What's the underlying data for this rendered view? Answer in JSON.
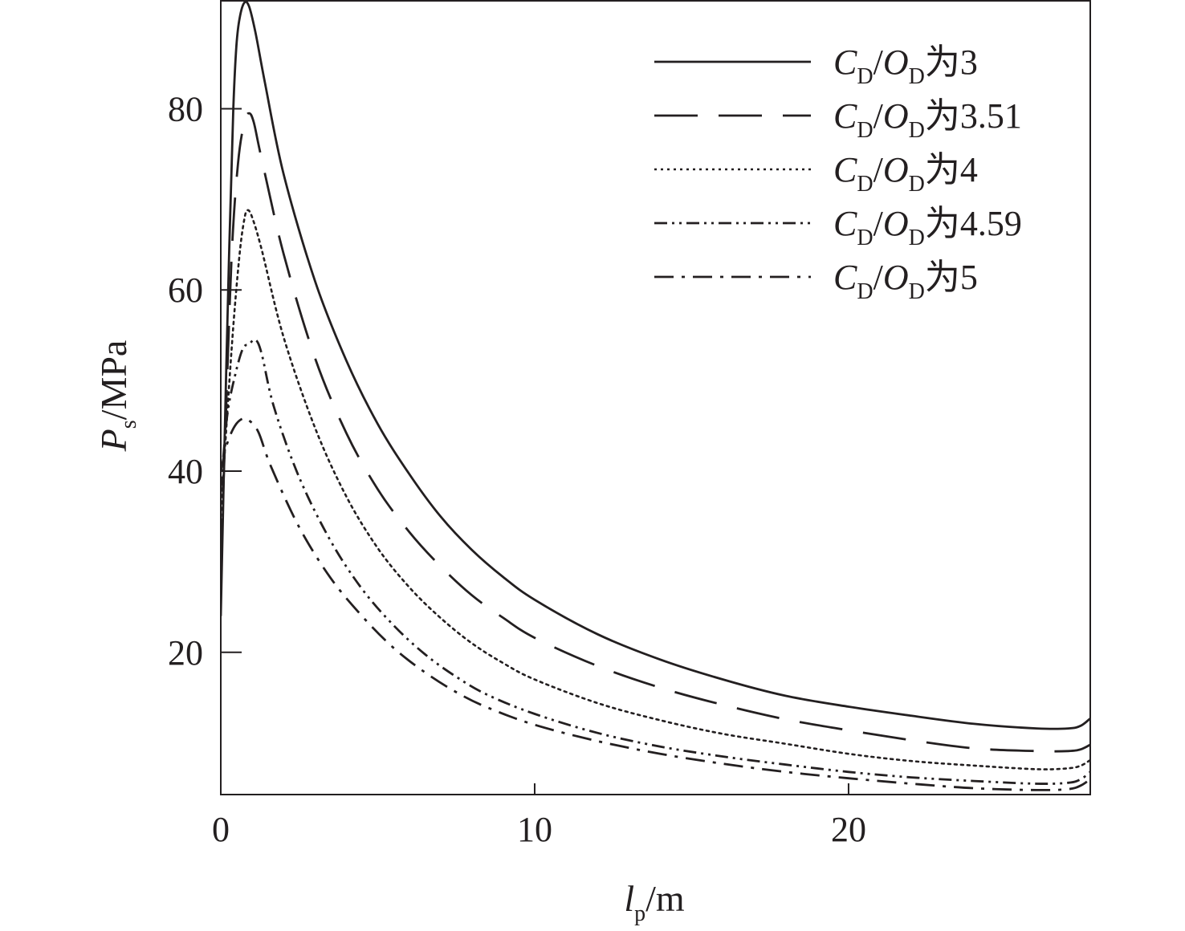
{
  "chart_data": {
    "type": "line",
    "title": "",
    "xlabel": {
      "main": "l",
      "sub": "p",
      "unit": "/m"
    },
    "ylabel": {
      "main": "P",
      "sub": "s",
      "unit": "/MPa"
    },
    "xlim": [
      0,
      27.7
    ],
    "ylim": [
      4.3,
      92
    ],
    "xticks": [
      0,
      10,
      20
    ],
    "yticks": [
      20,
      40,
      60,
      80
    ],
    "legend_position": "top-right",
    "series": [
      {
        "name": "CD/OD为3",
        "label_parts": {
          "c": "C",
          "c_sub": "D",
          "o": "O",
          "o_sub": "D",
          "rest": "为3"
        },
        "dash": "solid",
        "points": [
          [
            0,
            24
          ],
          [
            0.1,
            40
          ],
          [
            0.25,
            62
          ],
          [
            0.4,
            80
          ],
          [
            0.5,
            87
          ],
          [
            0.6,
            90
          ],
          [
            0.75,
            91.7
          ],
          [
            0.9,
            91.3
          ],
          [
            1.1,
            88.5
          ],
          [
            1.4,
            83
          ],
          [
            2,
            72.8
          ],
          [
            3,
            61
          ],
          [
            4,
            52.2
          ],
          [
            5,
            45.2
          ],
          [
            6,
            39.7
          ],
          [
            7,
            35
          ],
          [
            8,
            31.3
          ],
          [
            9,
            28.3
          ],
          [
            10,
            25.8
          ],
          [
            12,
            22
          ],
          [
            14,
            19.2
          ],
          [
            16,
            17
          ],
          [
            18,
            15.2
          ],
          [
            20,
            14
          ],
          [
            22,
            13
          ],
          [
            24,
            12.1
          ],
          [
            26,
            11.6
          ],
          [
            27,
            11.6
          ],
          [
            27.4,
            11.9
          ],
          [
            27.7,
            12.7
          ]
        ]
      },
      {
        "name": "CD/OD为3.51",
        "label_parts": {
          "c": "C",
          "c_sub": "D",
          "o": "O",
          "o_sub": "D",
          "rest": "为3.51"
        },
        "dash": "long-dash",
        "points": [
          [
            0,
            30
          ],
          [
            0.15,
            45
          ],
          [
            0.35,
            64
          ],
          [
            0.55,
            74
          ],
          [
            0.75,
            78.5
          ],
          [
            0.9,
            79.5
          ],
          [
            1.05,
            78.5
          ],
          [
            1.3,
            74.5
          ],
          [
            2,
            64
          ],
          [
            3,
            52.5
          ],
          [
            4,
            44.2
          ],
          [
            5,
            38
          ],
          [
            6,
            33.3
          ],
          [
            7,
            29.5
          ],
          [
            8,
            26.3
          ],
          [
            9,
            23.8
          ],
          [
            10,
            21.6
          ],
          [
            12,
            18.5
          ],
          [
            14,
            16.1
          ],
          [
            16,
            14.2
          ],
          [
            18,
            12.6
          ],
          [
            20,
            11.4
          ],
          [
            22,
            10.3
          ],
          [
            24,
            9.4
          ],
          [
            26,
            9.1
          ],
          [
            27,
            9.1
          ],
          [
            27.4,
            9.3
          ],
          [
            27.7,
            9.8
          ]
        ]
      },
      {
        "name": "CD/OD为4",
        "label_parts": {
          "c": "C",
          "c_sub": "D",
          "o": "O",
          "o_sub": "D",
          "rest": "为4"
        },
        "dash": "dotted",
        "points": [
          [
            0,
            35
          ],
          [
            0.2,
            46
          ],
          [
            0.4,
            56
          ],
          [
            0.6,
            64
          ],
          [
            0.75,
            67.8
          ],
          [
            0.85,
            68.8
          ],
          [
            1,
            68
          ],
          [
            1.3,
            64.5
          ],
          [
            2,
            54.8
          ],
          [
            3,
            44.8
          ],
          [
            4,
            37.2
          ],
          [
            5,
            31.5
          ],
          [
            6,
            27.2
          ],
          [
            7,
            23.8
          ],
          [
            8,
            21
          ],
          [
            9,
            18.8
          ],
          [
            10,
            17
          ],
          [
            12,
            14.4
          ],
          [
            14,
            12.5
          ],
          [
            16,
            11
          ],
          [
            18,
            9.9
          ],
          [
            20,
            8.8
          ],
          [
            22,
            8
          ],
          [
            24,
            7.5
          ],
          [
            26,
            7.1
          ],
          [
            27,
            7.2
          ],
          [
            27.4,
            7.5
          ],
          [
            27.7,
            8.1
          ]
        ]
      },
      {
        "name": "CD/OD为4.59",
        "label_parts": {
          "c": "C",
          "c_sub": "D",
          "o": "O",
          "o_sub": "D",
          "rest": "为4.59"
        },
        "dash": "dash-dot-dot",
        "points": [
          [
            0,
            38
          ],
          [
            0.2,
            46
          ],
          [
            0.45,
            50.5
          ],
          [
            0.7,
            53.5
          ],
          [
            0.9,
            54
          ],
          [
            1.1,
            54.5
          ],
          [
            1.3,
            53
          ],
          [
            1.7,
            47
          ],
          [
            2.5,
            39.3
          ],
          [
            3.5,
            32.3
          ],
          [
            4.5,
            27
          ],
          [
            5.5,
            23
          ],
          [
            6.5,
            19.8
          ],
          [
            7.5,
            17.3
          ],
          [
            8.5,
            15.3
          ],
          [
            10,
            13.2
          ],
          [
            12,
            11.1
          ],
          [
            14,
            9.6
          ],
          [
            16,
            8.5
          ],
          [
            18,
            7.6
          ],
          [
            20,
            6.8
          ],
          [
            22,
            6.2
          ],
          [
            24,
            5.8
          ],
          [
            26,
            5.5
          ],
          [
            27,
            5.6
          ],
          [
            27.4,
            6
          ],
          [
            27.7,
            6.8
          ]
        ]
      },
      {
        "name": "CD/OD为5",
        "label_parts": {
          "c": "C",
          "c_sub": "D",
          "o": "O",
          "o_sub": "D",
          "rest": "为5"
        },
        "dash": "dash-dot",
        "points": [
          [
            0,
            40
          ],
          [
            0.2,
            43
          ],
          [
            0.45,
            45
          ],
          [
            0.7,
            45.8
          ],
          [
            0.9,
            45.6
          ],
          [
            1.2,
            44.3
          ],
          [
            1.6,
            40.5
          ],
          [
            2.5,
            33.8
          ],
          [
            3.5,
            28.2
          ],
          [
            4.5,
            24
          ],
          [
            5.5,
            20.5
          ],
          [
            6.5,
            17.8
          ],
          [
            7.5,
            15.6
          ],
          [
            8.5,
            13.9
          ],
          [
            10,
            12
          ],
          [
            12,
            10.2
          ],
          [
            14,
            8.8
          ],
          [
            16,
            7.7
          ],
          [
            18,
            6.8
          ],
          [
            20,
            6.1
          ],
          [
            22,
            5.5
          ],
          [
            24,
            5
          ],
          [
            26,
            4.8
          ],
          [
            27,
            4.9
          ],
          [
            27.4,
            5.3
          ],
          [
            27.7,
            6
          ]
        ]
      }
    ]
  },
  "colors": {
    "line": "#231f20",
    "background": "#ffffff"
  }
}
